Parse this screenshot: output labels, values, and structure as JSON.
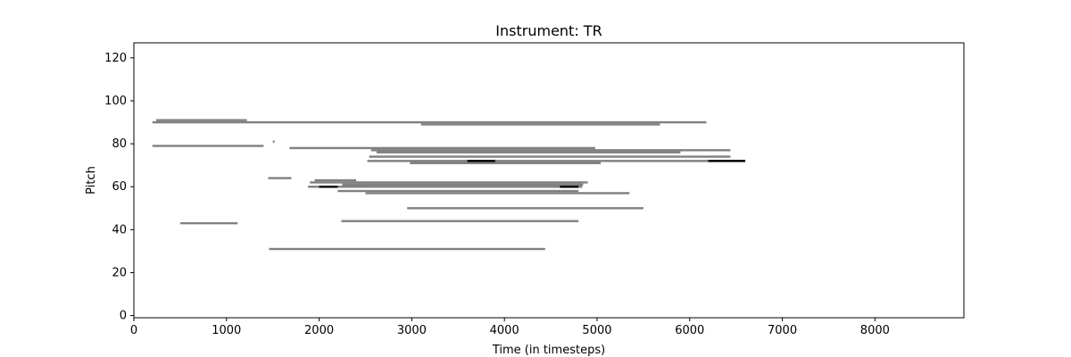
{
  "chart_data": {
    "type": "heatmap",
    "title": "Instrument: TR",
    "xlabel": "Time (in timesteps)",
    "ylabel": "Pitch",
    "xlim": [
      0,
      8960
    ],
    "ylim": [
      -1,
      127
    ],
    "xticks": [
      0,
      1000,
      2000,
      3000,
      4000,
      5000,
      6000,
      7000,
      8000
    ],
    "yticks": [
      0,
      20,
      40,
      60,
      80,
      100,
      120
    ],
    "grid": false,
    "colors": {
      "sustained": "#808080",
      "dense": "#000000",
      "frame": "#000000",
      "background": "#ffffff"
    },
    "notes": [
      {
        "pitch": 91,
        "start": 240,
        "end": 1220,
        "shade": "gray"
      },
      {
        "pitch": 90,
        "start": 200,
        "end": 6180,
        "shade": "gray"
      },
      {
        "pitch": 89,
        "start": 3100,
        "end": 5680,
        "shade": "gray"
      },
      {
        "pitch": 81,
        "start": 1500,
        "end": 1520,
        "shade": "gray"
      },
      {
        "pitch": 79,
        "start": 200,
        "end": 1400,
        "shade": "gray"
      },
      {
        "pitch": 78,
        "start": 1680,
        "end": 4980,
        "shade": "gray"
      },
      {
        "pitch": 77,
        "start": 2560,
        "end": 6440,
        "shade": "gray"
      },
      {
        "pitch": 76,
        "start": 2620,
        "end": 5900,
        "shade": "gray"
      },
      {
        "pitch": 74,
        "start": 2540,
        "end": 6440,
        "shade": "gray"
      },
      {
        "pitch": 72,
        "start": 2520,
        "end": 6600,
        "shade": "gray"
      },
      {
        "pitch": 71,
        "start": 2980,
        "end": 5040,
        "shade": "gray"
      },
      {
        "pitch": 72,
        "start": 3600,
        "end": 3900,
        "shade": "black"
      },
      {
        "pitch": 72,
        "start": 6200,
        "end": 6600,
        "shade": "black"
      },
      {
        "pitch": 64,
        "start": 1450,
        "end": 1700,
        "shade": "gray"
      },
      {
        "pitch": 63,
        "start": 1950,
        "end": 2400,
        "shade": "gray"
      },
      {
        "pitch": 62,
        "start": 1900,
        "end": 4900,
        "shade": "gray"
      },
      {
        "pitch": 61,
        "start": 2250,
        "end": 4850,
        "shade": "gray"
      },
      {
        "pitch": 60,
        "start": 1880,
        "end": 4840,
        "shade": "gray"
      },
      {
        "pitch": 60,
        "start": 2000,
        "end": 2200,
        "shade": "black"
      },
      {
        "pitch": 60,
        "start": 4600,
        "end": 4800,
        "shade": "black"
      },
      {
        "pitch": 58,
        "start": 2200,
        "end": 4800,
        "shade": "gray"
      },
      {
        "pitch": 57,
        "start": 2500,
        "end": 5350,
        "shade": "gray"
      },
      {
        "pitch": 50,
        "start": 2950,
        "end": 5500,
        "shade": "gray"
      },
      {
        "pitch": 44,
        "start": 2240,
        "end": 4800,
        "shade": "gray"
      },
      {
        "pitch": 43,
        "start": 500,
        "end": 1120,
        "shade": "gray"
      },
      {
        "pitch": 31,
        "start": 1460,
        "end": 4440,
        "shade": "gray"
      }
    ]
  }
}
